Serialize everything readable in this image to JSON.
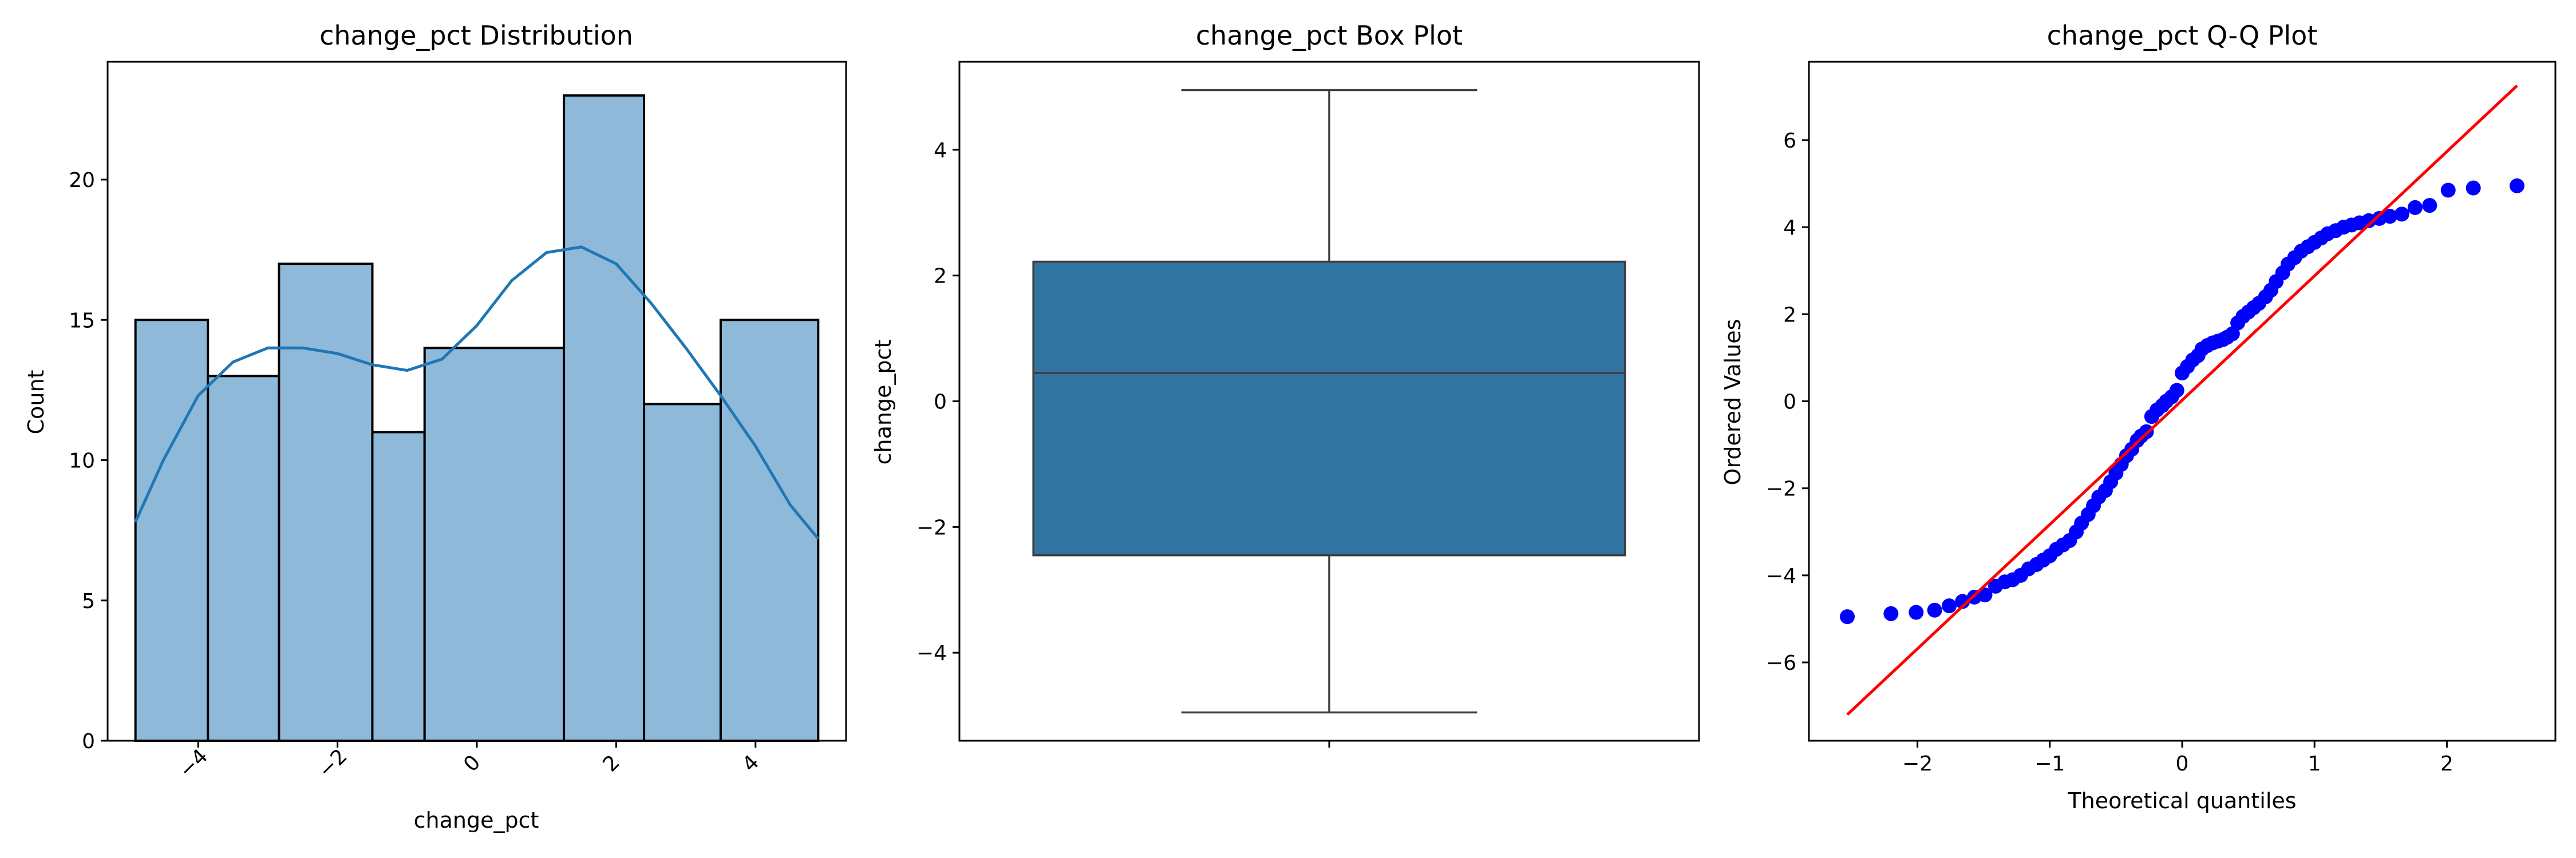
{
  "chart_data": [
    {
      "type": "bar",
      "title": "change_pct Distribution",
      "xlabel": "change_pct",
      "ylabel": "Count",
      "bin_edges": [
        -4.9,
        -3.86,
        -2.84,
        -1.5,
        -0.75,
        1.25,
        2.4,
        3.5,
        4.9
      ],
      "counts": [
        15,
        13,
        17,
        11,
        14,
        23,
        12,
        15
      ],
      "xlim": [
        -5.3,
        5.3
      ],
      "ylim": [
        0,
        24.2
      ],
      "xticks": [
        -4,
        -2,
        0,
        2,
        4
      ],
      "xtick_labels": [
        "−4",
        "−2",
        "0",
        "2",
        "4"
      ],
      "yticks": [
        0,
        5,
        10,
        15,
        20
      ],
      "ytick_labels": [
        "0",
        "5",
        "10",
        "15",
        "20"
      ],
      "kde": {
        "x": [
          -4.9,
          -4.5,
          -4.0,
          -3.5,
          -3.0,
          -2.5,
          -2.0,
          -1.5,
          -1.0,
          -0.5,
          0.0,
          0.5,
          1.0,
          1.5,
          2.0,
          2.5,
          3.0,
          3.5,
          4.0,
          4.5,
          4.9
        ],
        "y": [
          7.8,
          10.0,
          12.3,
          13.5,
          14.0,
          14.0,
          13.8,
          13.4,
          13.2,
          13.6,
          14.8,
          16.4,
          17.4,
          17.6,
          17.0,
          15.6,
          14.0,
          12.3,
          10.5,
          8.4,
          7.2
        ]
      },
      "colors": {
        "bar": "#8fb9d9",
        "edge": "#000000",
        "kde": "#1f77b4"
      }
    },
    {
      "type": "box",
      "title": "change_pct Box Plot",
      "ylabel": "change_pct",
      "ylim": [
        -5.4,
        5.4
      ],
      "whisker_low": -4.95,
      "q1": -2.45,
      "median": 0.45,
      "q3": 2.22,
      "whisker_high": 4.95,
      "yticks": [
        -4,
        -2,
        0,
        2,
        4
      ],
      "ytick_labels": [
        "−4",
        "−2",
        "0",
        "2",
        "4"
      ],
      "colors": {
        "box": "#3274a1",
        "line": "#3d3d3d"
      }
    },
    {
      "type": "scatter",
      "title": "change_pct Q-Q Plot",
      "xlabel": "Theoretical quantiles",
      "ylabel": "Ordered Values",
      "xlim": [
        -2.82,
        2.82
      ],
      "ylim": [
        -7.8,
        7.8
      ],
      "xticks": [
        -2,
        -1,
        0,
        1,
        2
      ],
      "xtick_labels": [
        "−2",
        "−1",
        "0",
        "1",
        "2"
      ],
      "yticks": [
        -6,
        -4,
        -2,
        0,
        2,
        4,
        6
      ],
      "ytick_labels": [
        "−6",
        "−4",
        "−2",
        "0",
        "2",
        "4",
        "6"
      ],
      "fit_line": {
        "x": [
          -2.53,
          2.53
        ],
        "y": [
          -7.2,
          7.25
        ]
      },
      "points": {
        "theoretical": [
          -2.53,
          -2.2,
          -2.01,
          -1.87,
          -1.76,
          -1.66,
          -1.57,
          -1.49,
          -1.41,
          -1.34,
          -1.28,
          -1.22,
          -1.16,
          -1.1,
          -1.05,
          -1.0,
          -0.95,
          -0.9,
          -0.85,
          -0.8,
          -0.76,
          -0.71,
          -0.67,
          -0.63,
          -0.58,
          -0.54,
          -0.5,
          -0.46,
          -0.42,
          -0.38,
          -0.34,
          -0.31,
          -0.27,
          -0.23,
          -0.19,
          -0.15,
          -0.12,
          -0.08,
          -0.04,
          0.0,
          0.04,
          0.08,
          0.12,
          0.15,
          0.19,
          0.23,
          0.27,
          0.31,
          0.34,
          0.38,
          0.42,
          0.46,
          0.5,
          0.54,
          0.58,
          0.63,
          0.67,
          0.71,
          0.76,
          0.8,
          0.85,
          0.9,
          0.95,
          1.0,
          1.05,
          1.1,
          1.16,
          1.22,
          1.28,
          1.34,
          1.41,
          1.49,
          1.57,
          1.66,
          1.76,
          1.87,
          2.01,
          2.2,
          2.53
        ],
        "ordered": [
          -4.95,
          -4.88,
          -4.85,
          -4.8,
          -4.7,
          -4.6,
          -4.5,
          -4.45,
          -4.25,
          -4.15,
          -4.1,
          -4.0,
          -3.85,
          -3.75,
          -3.65,
          -3.55,
          -3.4,
          -3.3,
          -3.2,
          -3.0,
          -2.8,
          -2.6,
          -2.4,
          -2.2,
          -2.05,
          -1.85,
          -1.65,
          -1.45,
          -1.25,
          -1.1,
          -0.9,
          -0.8,
          -0.7,
          -0.35,
          -0.2,
          -0.1,
          0.0,
          0.1,
          0.25,
          0.65,
          0.8,
          0.95,
          1.05,
          1.2,
          1.28,
          1.34,
          1.38,
          1.42,
          1.47,
          1.55,
          1.8,
          1.95,
          2.05,
          2.15,
          2.25,
          2.4,
          2.55,
          2.75,
          2.95,
          3.15,
          3.3,
          3.45,
          3.55,
          3.65,
          3.75,
          3.85,
          3.92,
          4.0,
          4.05,
          4.1,
          4.15,
          4.2,
          4.25,
          4.3,
          4.45,
          4.5,
          4.85,
          4.9,
          4.95
        ]
      },
      "colors": {
        "point": "#0000ff",
        "line": "#ff0000"
      }
    }
  ]
}
